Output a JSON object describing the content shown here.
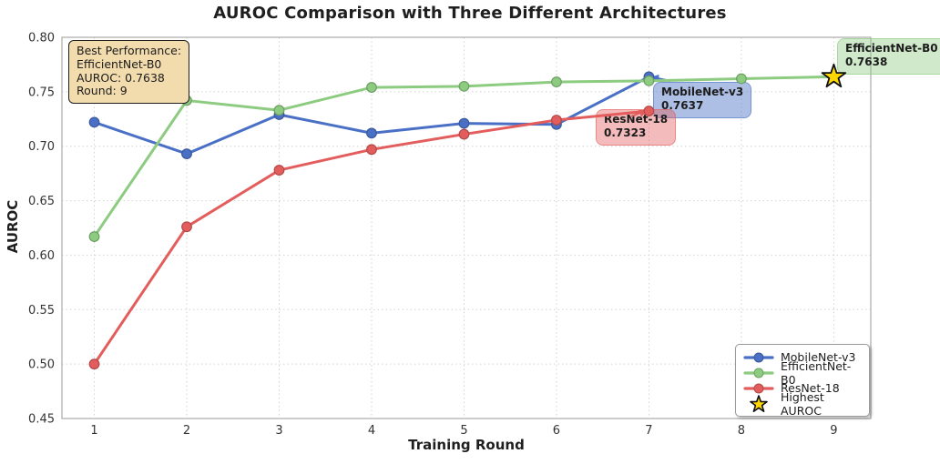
{
  "title": "AUROC Comparison with Three Different Architectures",
  "chart_data": {
    "type": "line",
    "title": "AUROC Comparison with Three Different Architectures",
    "xlabel": "Training Round",
    "ylabel": "AUROC",
    "xlim": [
      0.65,
      9.4
    ],
    "ylim": [
      0.45,
      0.8
    ],
    "xticks": [
      1,
      2,
      3,
      4,
      5,
      6,
      7,
      8,
      9
    ],
    "yticks": [
      0.45,
      0.5,
      0.55,
      0.6,
      0.65,
      0.7,
      0.75,
      0.8
    ],
    "grid": "dotted",
    "legend_position": "lower right",
    "series": [
      {
        "name": "MobileNet-v3",
        "color": "#4a70c6",
        "x": [
          1,
          2,
          3,
          4,
          5,
          6,
          7
        ],
        "values": [
          0.722,
          0.693,
          0.729,
          0.712,
          0.721,
          0.72,
          0.7637
        ]
      },
      {
        "name": "EfficientNet-B0",
        "color": "#8ccb80",
        "x": [
          1,
          2,
          3,
          4,
          5,
          6,
          7,
          8,
          9
        ],
        "values": [
          0.617,
          0.742,
          0.733,
          0.754,
          0.755,
          0.759,
          0.76,
          0.762,
          0.7638
        ]
      },
      {
        "name": "ResNet-18",
        "color": "#e35d5d",
        "x": [
          1,
          2,
          3,
          4,
          5,
          6,
          7
        ],
        "values": [
          0.5,
          0.626,
          0.678,
          0.697,
          0.711,
          0.724,
          0.7323
        ]
      }
    ],
    "highest_marker": {
      "x": 9,
      "y": 0.7638,
      "label": "Highest AUROC",
      "fill": "#ffd700",
      "edge": "#111111"
    }
  },
  "legend": {
    "items": [
      {
        "label": "MobileNet-v3",
        "swatch": "line",
        "color": "#4a70c6"
      },
      {
        "label": "EfficientNet-B0",
        "swatch": "line",
        "color": "#8ccb80"
      },
      {
        "label": "ResNet-18",
        "swatch": "line",
        "color": "#e35d5d"
      },
      {
        "label": "Highest AUROC",
        "swatch": "star",
        "color": "#ffd700"
      }
    ]
  },
  "annotations": {
    "best_performance": {
      "lines": [
        "Best Performance:",
        "EfficientNet-B0",
        "AUROC: 0.7638",
        "Round: 9"
      ],
      "fill": "#f2dcae"
    },
    "mobilenet": {
      "name": "MobileNet-v3",
      "value": "0.7637"
    },
    "resnet": {
      "name": "ResNet-18",
      "value": "0.7323"
    },
    "efficientnet": {
      "name": "EfficientNet-B0",
      "value": "0.7638"
    }
  }
}
